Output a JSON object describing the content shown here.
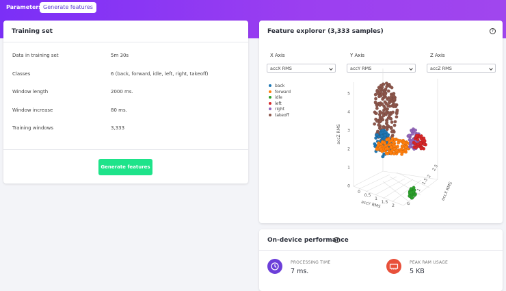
{
  "tabs": [
    "Parameters",
    "Generate features"
  ],
  "training_set": {
    "title": "Training set",
    "rows": [
      [
        "Data in training set",
        "5m 30s"
      ],
      [
        "Classes",
        "6 (back, forward, idle, left, right, takeoff)"
      ],
      [
        "Window length",
        "2000 ms."
      ],
      [
        "Window increase",
        "80 ms."
      ],
      [
        "Training windows",
        "3,333"
      ]
    ],
    "button": "Generate features"
  },
  "feature_explorer": {
    "title": "Feature explorer (3,333 samples)",
    "axes": [
      {
        "label": "X Axis",
        "value": "accX RMS"
      },
      {
        "label": "Y Axis",
        "value": "accY RMS"
      },
      {
        "label": "Z Axis",
        "value": "accZ RMS"
      }
    ],
    "legend": [
      {
        "name": "back",
        "color": "#1f77b4"
      },
      {
        "name": "forward",
        "color": "#ff7f0e"
      },
      {
        "name": "idle",
        "color": "#2ca02c"
      },
      {
        "name": "left",
        "color": "#d62728"
      },
      {
        "name": "right",
        "color": "#9467bd"
      },
      {
        "name": "takeoff",
        "color": "#8c564b"
      }
    ],
    "plot": {
      "z_label": "accZ RMS",
      "y_label": "accY RMS",
      "x_label": "accX RMS",
      "z_ticks": [
        "0",
        "1",
        "2",
        "3",
        "4",
        "5"
      ],
      "y_ticks": [
        "0",
        "0.5",
        "1",
        "1.5",
        "2"
      ],
      "x_ticks": [
        "0",
        "0.5",
        "1",
        "1.5",
        "2",
        "2.5"
      ]
    }
  },
  "performance": {
    "title": "On-device performance",
    "metrics": [
      {
        "label": "PROCESSING TIME",
        "value": "7 ms."
      },
      {
        "label": "PEAK RAM USAGE",
        "value": "5 KB"
      }
    ]
  }
}
